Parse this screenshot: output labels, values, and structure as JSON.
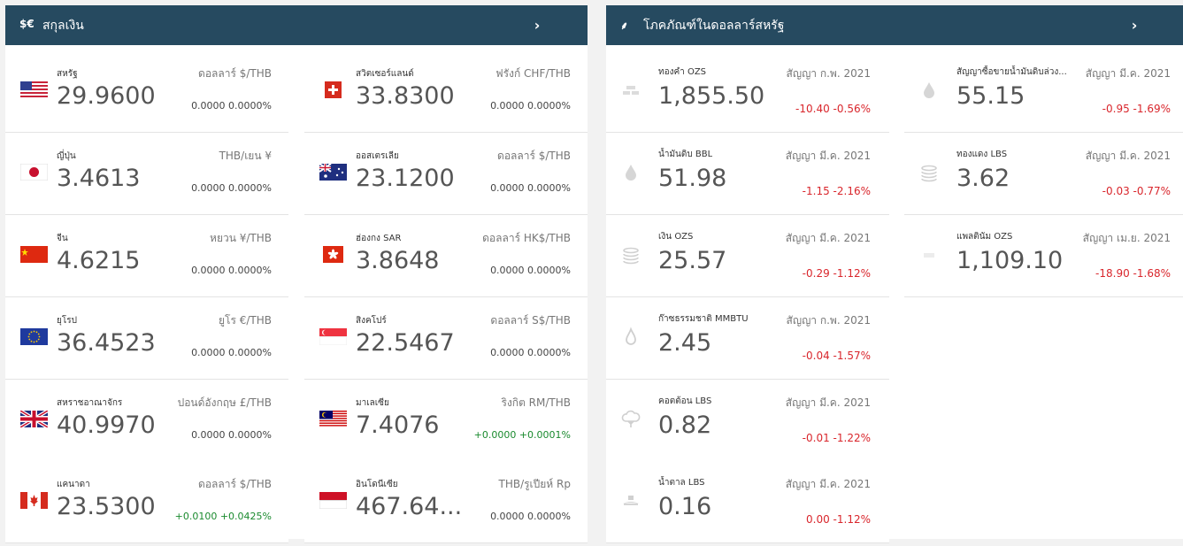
{
  "colors": {
    "header_bg": "#264a60",
    "positive": "#1a8a2e",
    "negative": "#d9262c"
  },
  "currency": {
    "icon_text": "$€",
    "title": "สกุลเงิน",
    "more_icon": "›",
    "items": [
      {
        "name": "สหรัฐ",
        "pair": "ดอลลาร์ $/THB",
        "price": "29.9600",
        "change": "0.0000 0.0000%",
        "flag": "us-flag-icon"
      },
      {
        "name": "สวิตเซอร์แลนด์",
        "pair": "ฟรังก์ CHF/THB",
        "price": "33.8300",
        "change": "0.0000 0.0000%",
        "flag": "ch-flag-icon"
      },
      {
        "name": "ญี่ปุ่น",
        "pair": "THB/เยน ¥",
        "price": "3.4613",
        "change": "0.0000 0.0000%",
        "flag": "jp-flag-icon"
      },
      {
        "name": "ออสเตรเลีย",
        "pair": "ดอลลาร์ $/THB",
        "price": "23.1200",
        "change": "0.0000 0.0000%",
        "flag": "au-flag-icon"
      },
      {
        "name": "จีน",
        "pair": "หยวน ¥/THB",
        "price": "4.6215",
        "change": "0.0000 0.0000%",
        "flag": "cn-flag-icon"
      },
      {
        "name": "ฮ่องกง SAR",
        "pair": "ดอลลาร์ HK$/THB",
        "price": "3.8648",
        "change": "0.0000 0.0000%",
        "flag": "hk-flag-icon"
      },
      {
        "name": "ยุโรป",
        "pair": "ยูโร €/THB",
        "price": "36.4523",
        "change": "0.0000 0.0000%",
        "flag": "eu-flag-icon"
      },
      {
        "name": "สิงคโปร์",
        "pair": "ดอลลาร์ S$/THB",
        "price": "22.5467",
        "change": "0.0000 0.0000%",
        "flag": "sg-flag-icon"
      },
      {
        "name": "สหราชอาณาจักร",
        "pair": "ปอนด์อังกฤษ £/THB",
        "price": "40.9970",
        "change": "0.0000 0.0000%",
        "flag": "gb-flag-icon"
      },
      {
        "name": "มาเลเซีย",
        "pair": "ริงกิต RM/THB",
        "price": "7.4076",
        "change": "+0.0000 +0.0001%",
        "flag": "my-flag-icon"
      },
      {
        "name": "แคนาดา",
        "pair": "ดอลลาร์ $/THB",
        "price": "23.5300",
        "change": "+0.0100 +0.0425%",
        "flag": "ca-flag-icon"
      },
      {
        "name": "อินโดนีเซีย",
        "pair": "THB/รูเปียห์ Rp",
        "price": "467.64...",
        "change": "0.0000 0.0000%",
        "flag": "id-flag-icon"
      }
    ]
  },
  "commodities": {
    "icon_text": "⸙",
    "title": "โภคภัณฑ์ในดอลลาร์สหรัฐ",
    "more_icon": "›",
    "items": [
      {
        "name": "ทองคำ OZS",
        "contract": "สัญญา ก.พ. 2021",
        "price": "1,855.50",
        "change": "-10.40 -0.56%",
        "icon": "gold-bars-icon"
      },
      {
        "name": "สัญญาซื้อขายน้ำมันดิบล่วง...",
        "contract": "สัญญา มี.ค. 2021",
        "price": "55.15",
        "change": "-0.95 -1.69%",
        "icon": "oil-drop-icon"
      },
      {
        "name": "น้ำมันดิบ BBL",
        "contract": "สัญญา มี.ค. 2021",
        "price": "51.98",
        "change": "-1.15 -2.16%",
        "icon": "oil-drop-icon"
      },
      {
        "name": "ทองแดง LBS",
        "contract": "สัญญา มี.ค. 2021",
        "price": "3.62",
        "change": "-0.03 -0.77%",
        "icon": "coin-stack-icon"
      },
      {
        "name": "เงิน OZS",
        "contract": "สัญญา มี.ค. 2021",
        "price": "25.57",
        "change": "-0.29 -1.12%",
        "icon": "coin-stack-icon"
      },
      {
        "name": "แพลตินัม OZS",
        "contract": "สัญญา เม.ย. 2021",
        "price": "1,109.10",
        "change": "-18.90 -1.68%",
        "icon": "platinum-icon"
      },
      {
        "name": "ก๊าซธรรมชาติ MMBTU",
        "contract": "สัญญา ก.พ. 2021",
        "price": "2.45",
        "change": "-0.04 -1.57%",
        "icon": "flame-icon"
      },
      {
        "name": "คอตต้อน LBS",
        "contract": "สัญญา มี.ค. 2021",
        "price": "0.82",
        "change": "-0.01 -1.22%",
        "icon": "cotton-icon"
      },
      {
        "name": "น้ำตาล LBS",
        "contract": "สัญญา มี.ค. 2021",
        "price": "0.16",
        "change": "0.00 -1.12%",
        "icon": "sugar-icon"
      }
    ]
  }
}
